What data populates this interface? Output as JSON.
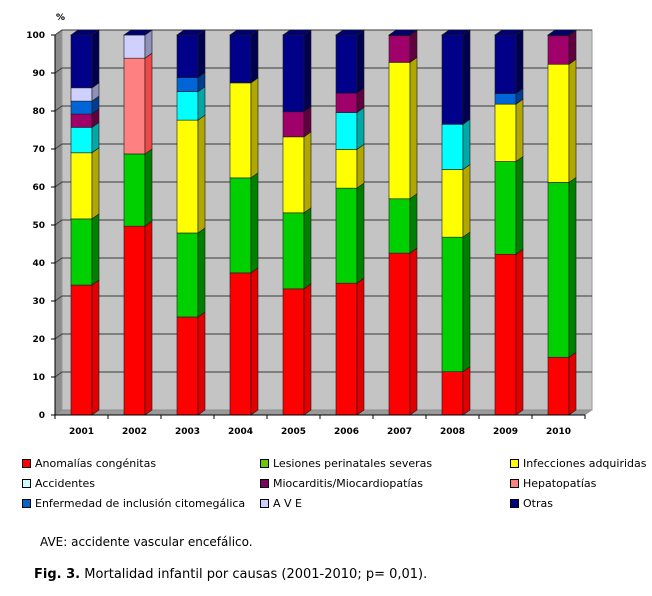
{
  "chart_data": {
    "type": "bar",
    "subtype": "stacked-100-3d",
    "ylabel": "%",
    "xlabel": "",
    "ylim": [
      0,
      100
    ],
    "yticks": [
      0,
      10,
      20,
      30,
      40,
      50,
      60,
      70,
      80,
      90,
      100
    ],
    "grid": true,
    "legend_position": "bottom",
    "categories": [
      "2001",
      "2002",
      "2003",
      "2004",
      "2005",
      "2006",
      "2007",
      "2008",
      "2009",
      "2010"
    ],
    "series": [
      {
        "name": "Anomalías congénitas",
        "color": "#ff0000",
        "side": "#e00000",
        "values": [
          34.2,
          49.7,
          25.8,
          37.4,
          33.2,
          34.7,
          42.6,
          11.4,
          42.3,
          15.2
        ]
      },
      {
        "name": "Lesiones perinatales severas",
        "color": "#00d000",
        "side": "#008000",
        "values": [
          17.4,
          19.0,
          22.1,
          25.0,
          20.0,
          25.0,
          14.3,
          35.4,
          24.4,
          46.0
        ]
      },
      {
        "name": "Infecciones adquiridas",
        "color": "#ffff00",
        "side": "#b0a800",
        "values": [
          17.4,
          0,
          29.7,
          25.0,
          20.0,
          10.2,
          35.9,
          17.8,
          15.1,
          31.1
        ]
      },
      {
        "name": "Accidentes",
        "color": "#00ffff",
        "side": "#00a8a8",
        "values": [
          6.7,
          0,
          7.5,
          0,
          0,
          9.7,
          0,
          11.9,
          0,
          0
        ]
      },
      {
        "name": "Miocarditis/Miocardiopatías",
        "color": "#a0006a",
        "side": "#60003e",
        "values": [
          3.5,
          0,
          0,
          0,
          6.6,
          5.1,
          7.0,
          0,
          0,
          7.5
        ]
      },
      {
        "name": "Hepatopatías",
        "color": "#ff8080",
        "side": "#f04848",
        "values": [
          0,
          25.2,
          0,
          0,
          0,
          0,
          0,
          0,
          0,
          0
        ]
      },
      {
        "name": "Enfermedad de inclusión citomegálica",
        "color": "#0066d8",
        "side": "#003c90",
        "values": [
          3.4,
          0,
          3.7,
          0,
          0,
          0,
          0,
          0,
          2.8,
          0
        ]
      },
      {
        "name": "A V E",
        "color": "#d0d0ff",
        "side": "#9090b8",
        "values": [
          3.5,
          6.1,
          0,
          0,
          0,
          0,
          0,
          0,
          0,
          0
        ]
      },
      {
        "name": "Otras",
        "color": "#000088",
        "side": "#000050",
        "values": [
          13.9,
          0,
          11.2,
          12.6,
          20.2,
          15.3,
          0.2,
          23.5,
          15.4,
          0.2
        ]
      }
    ]
  },
  "legend": {
    "items": [
      {
        "label": "Anomalías congénitas",
        "color": "#ff0000"
      },
      {
        "label": "Lesiones perinatales severas",
        "color": "#66cc00"
      },
      {
        "label": "Infecciones adquiridas",
        "color": "#ffff00"
      },
      {
        "label": "Accidentes",
        "color": "#ccffff"
      },
      {
        "label": "Miocarditis/Miocardiopatías",
        "color": "#800060"
      },
      {
        "label": "Hepatopatías",
        "color": "#ff8080"
      },
      {
        "label": "Enfermedad de inclusión citomegálica",
        "color": "#0066cc"
      },
      {
        "label": "A V E",
        "color": "#ccccff"
      },
      {
        "label": "Otras",
        "color": "#000080"
      }
    ]
  },
  "note": "AVE: accidente vascular encefálico.",
  "caption": {
    "label": "Fig. 3.",
    "text": " Mortalidad infantil por causas (2001-2010; p= 0,01)."
  }
}
